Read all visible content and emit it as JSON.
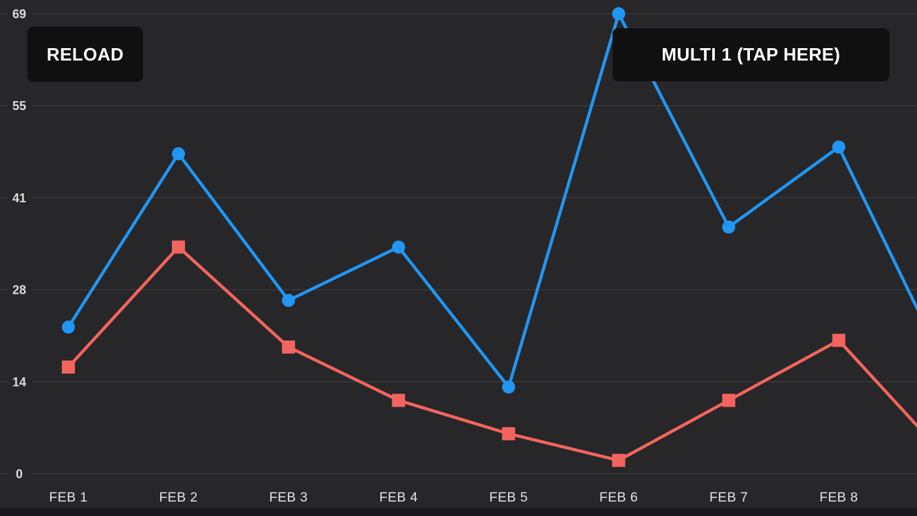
{
  "buttons": {
    "reload": "RELOAD",
    "multi": "MULTI 1 (TAP HERE)"
  },
  "theme": {
    "screen_bg": "#19191b",
    "chart_bg": "#272729",
    "grid_color": "#3c3c3e",
    "axis_label_color": "#dcdcdd",
    "x_label_color": "#e4e4e5",
    "button_bg": "#101010",
    "button_text": "#ffffff"
  },
  "chart_data": {
    "type": "line",
    "title": "",
    "xlabel": "",
    "ylabel": "",
    "grid": true,
    "legend_position": "none",
    "x_labels": [
      "FEB 1",
      "FEB 2",
      "FEB 3",
      "FEB 4",
      "FEB 5",
      "FEB 6",
      "FEB 7",
      "FEB 8"
    ],
    "y_ticks": [
      0,
      14,
      28,
      41,
      55,
      69
    ],
    "ylim": [
      0,
      69
    ],
    "y_max_plot": 69,
    "series": [
      {
        "name": "series-1-blue",
        "color": "#2196f3",
        "marker": "circle",
        "values": [
          22,
          48,
          26,
          34,
          13,
          69,
          37,
          49
        ],
        "offscreen_next": 15
      },
      {
        "name": "series-2-red",
        "color": "#f4645f",
        "marker": "square",
        "values": [
          16,
          34,
          19,
          11,
          6,
          2,
          11,
          20
        ],
        "offscreen_next": 2
      }
    ]
  }
}
